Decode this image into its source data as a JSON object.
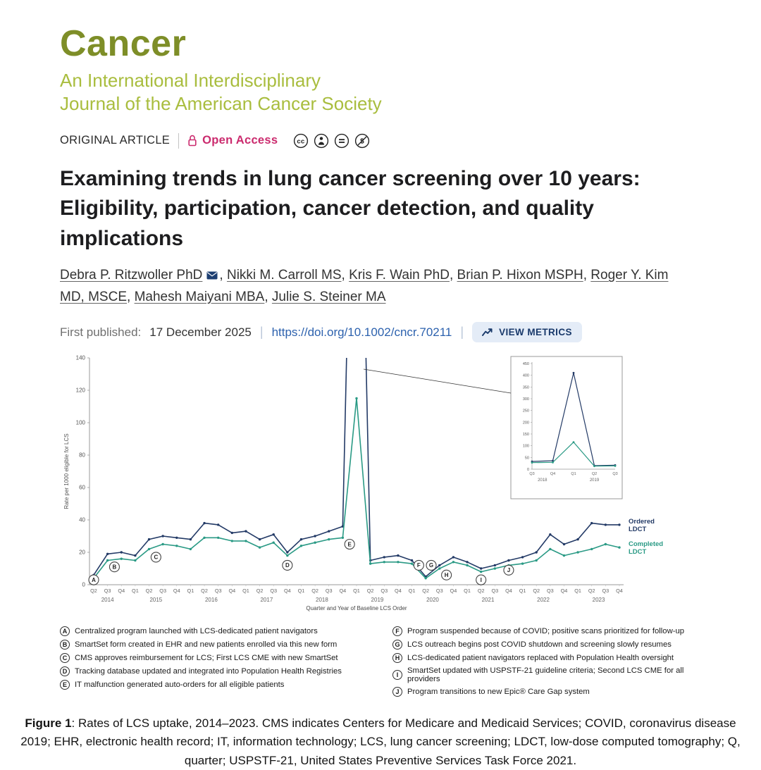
{
  "journal": {
    "logo": "Cancer",
    "subtitle_line1": "An International Interdisciplinary",
    "subtitle_line2": "Journal of the American Cancer Society"
  },
  "article_meta": {
    "type": "ORIGINAL ARTICLE",
    "access_label": "Open Access",
    "license_icons": [
      "cc-icon",
      "cc-by-icon",
      "cc-nd-icon",
      "cc-nc-icon"
    ]
  },
  "title": "Examining trends in lung cancer screening over 10 years: Eligibility, participation, cancer detection, and quality implications",
  "authors": [
    {
      "name": "Debra P. Ritzwoller PhD",
      "email_icon": true
    },
    {
      "name": "Nikki M. Carroll MS"
    },
    {
      "name": "Kris F. Wain PhD"
    },
    {
      "name": "Brian P. Hixon MSPH"
    },
    {
      "name": "Roger Y. Kim MD, MSCE"
    },
    {
      "name": "Mahesh Maiyani MBA"
    },
    {
      "name": "Julie S. Steiner MA"
    }
  ],
  "published": {
    "label": "First published:",
    "date": "17 December 2025",
    "separator": "|",
    "doi": "https://doi.org/10.1002/cncr.70211",
    "metrics_label": "VIEW METRICS"
  },
  "chart_data": {
    "type": "line",
    "xlabel": "Quarter and Year of Baseline LCS Order",
    "ylabel": "Rate per 1000 eligible for LCS",
    "ylim": [
      0,
      140
    ],
    "yticks": [
      0,
      20,
      40,
      60,
      80,
      100,
      120,
      140
    ],
    "quarters": [
      "Q2",
      "Q3",
      "Q4",
      "Q1",
      "Q2",
      "Q3",
      "Q4",
      "Q1",
      "Q2",
      "Q3",
      "Q4",
      "Q1",
      "Q2",
      "Q3",
      "Q4",
      "Q1",
      "Q2",
      "Q3",
      "Q4",
      "Q1",
      "Q2",
      "Q3",
      "Q4",
      "Q1",
      "Q2",
      "Q3",
      "Q4",
      "Q1",
      "Q2",
      "Q3",
      "Q4",
      "Q1",
      "Q2",
      "Q3",
      "Q4",
      "Q1",
      "Q2",
      "Q3",
      "Q4"
    ],
    "years": [
      {
        "label": "2014",
        "span": 3
      },
      {
        "label": "2015",
        "span": 4
      },
      {
        "label": "2016",
        "span": 4
      },
      {
        "label": "2017",
        "span": 4
      },
      {
        "label": "2018",
        "span": 4
      },
      {
        "label": "2019",
        "span": 4
      },
      {
        "label": "2020",
        "span": 4
      },
      {
        "label": "2021",
        "span": 4
      },
      {
        "label": "2022",
        "span": 4
      },
      {
        "label": "2023",
        "span": 4
      }
    ],
    "series": [
      {
        "name": "Ordered LDCT",
        "color": "#233a66",
        "values": [
          6,
          19,
          20,
          18,
          28,
          30,
          29,
          28,
          38,
          37,
          32,
          33,
          28,
          31,
          20,
          28,
          30,
          33,
          36,
          410,
          15,
          17,
          18,
          15,
          5,
          12,
          17,
          14,
          10,
          12,
          15,
          17,
          20,
          31,
          25,
          28,
          38,
          37,
          37
        ]
      },
      {
        "name": "Completed LDCT",
        "color": "#2a9a85",
        "values": [
          4,
          15,
          16,
          15,
          22,
          25,
          24,
          22,
          29,
          29,
          27,
          27,
          23,
          26,
          18,
          24,
          26,
          28,
          29,
          115,
          13,
          14,
          14,
          13,
          4,
          10,
          14,
          12,
          8,
          10,
          12,
          13,
          15,
          22,
          18,
          20,
          22,
          25,
          23
        ]
      }
    ],
    "annotations": [
      {
        "label": "A",
        "x": 0,
        "y": 3
      },
      {
        "label": "B",
        "x": 1.5,
        "y": 11
      },
      {
        "label": "C",
        "x": 4.5,
        "y": 17
      },
      {
        "label": "D",
        "x": 14,
        "y": 12
      },
      {
        "label": "E",
        "x": 18.5,
        "y": 25
      },
      {
        "label": "F",
        "x": 23.5,
        "y": 12
      },
      {
        "label": "G",
        "x": 24.4,
        "y": 12
      },
      {
        "label": "H",
        "x": 25.5,
        "y": 6
      },
      {
        "label": "I",
        "x": 28,
        "y": 3
      },
      {
        "label": "J",
        "x": 30,
        "y": 9
      }
    ],
    "inset": {
      "ylim": [
        0,
        450
      ],
      "yticks": [
        0,
        50,
        100,
        150,
        200,
        250,
        300,
        350,
        400,
        450
      ],
      "quarters": [
        "Q3",
        "Q4",
        "Q1",
        "Q2",
        "Q3"
      ],
      "years": [
        {
          "label": "2018",
          "span": 2
        },
        {
          "label": "2019",
          "span": 3
        }
      ],
      "series": [
        {
          "name": "Ordered LDCT",
          "color": "#233a66",
          "values": [
            33,
            36,
            410,
            15,
            17
          ]
        },
        {
          "name": "Completed LDCT",
          "color": "#2a9a85",
          "values": [
            28,
            29,
            115,
            13,
            14
          ]
        }
      ]
    }
  },
  "footnotes": {
    "left": [
      {
        "label": "A",
        "text": "Centralized program launched with LCS-dedicated patient navigators"
      },
      {
        "label": "B",
        "text": "SmartSet form created in EHR and new patients enrolled via this new form"
      },
      {
        "label": "C",
        "text": "CMS approves reimbursement for LCS; First LCS CME with new SmartSet"
      },
      {
        "label": "D",
        "text": "Tracking database updated and integrated into Population Health Registries"
      },
      {
        "label": "E",
        "text": "IT malfunction generated auto-orders for all eligible patients"
      }
    ],
    "right": [
      {
        "label": "F",
        "text": "Program suspended because of COVID; positive scans prioritized for follow-up"
      },
      {
        "label": "G",
        "text": "LCS outreach begins post COVID shutdown and screening slowly resumes"
      },
      {
        "label": "H",
        "text": "LCS-dedicated patient navigators replaced with Population Health oversight"
      },
      {
        "label": "I",
        "text": "SmartSet updated with USPSTF-21 guideline criteria; Second LCS CME for all providers"
      },
      {
        "label": "J",
        "text": "Program transitions to new Epic® Care Gap system"
      }
    ]
  },
  "caption": {
    "prefix": "Figure 1",
    "text": ": Rates of LCS uptake, 2014–2023. CMS indicates Centers for Medicare and Medicaid Services; COVID, coronavirus disease 2019; EHR, electronic health record; IT, information technology; LCS, lung cancer screening; LDCT, low-dose computed tomography; Q, quarter; USPSTF-21, United States Preventive Services Task Force 2021."
  }
}
